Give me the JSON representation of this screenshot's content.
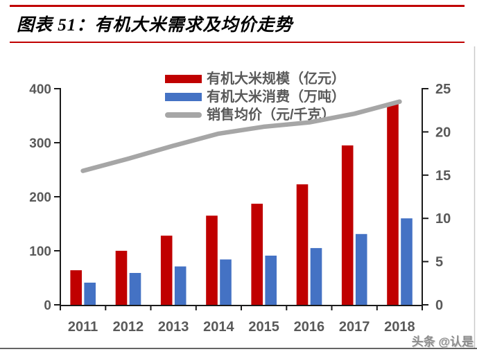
{
  "header": {
    "title": "图表 51：有机大米需求及均价走势"
  },
  "watermark": "头条 @认是",
  "colors": {
    "accent_rule": "#c00000",
    "bar_scale": "#c00000",
    "bar_consumption": "#4472c4",
    "price_line": "#a6a6a6",
    "axis": "#1a1a1a",
    "tick_label": "#595959",
    "page_border_right": "#c9c9c9",
    "page_border_bottom": "#303030"
  },
  "chart_data": {
    "type": "bar",
    "subtype": "grouped-bars-with-line",
    "title": "有机大米需求及均价走势",
    "categories": [
      "2011",
      "2012",
      "2013",
      "2014",
      "2015",
      "2016",
      "2017",
      "2018"
    ],
    "series": [
      {
        "name": "有机大米规模（亿元）",
        "type": "bar",
        "axis": "left",
        "color": "#c00000",
        "values": [
          64,
          100,
          128,
          165,
          187,
          223,
          295,
          373
        ]
      },
      {
        "name": "有机大米消费（万吨）",
        "type": "bar",
        "axis": "left",
        "color": "#4472c4",
        "values": [
          41,
          59,
          71,
          84,
          91,
          105,
          131,
          160
        ]
      },
      {
        "name": "销售均价（元/千克）",
        "type": "line",
        "axis": "right",
        "color": "#a6a6a6",
        "values": [
          15.5,
          16.9,
          18.4,
          19.8,
          20.6,
          21.1,
          22.1,
          23.5
        ]
      }
    ],
    "left_axis": {
      "min": 0,
      "max": 400,
      "ticks": [
        0,
        100,
        200,
        300,
        400
      ]
    },
    "right_axis": {
      "min": 0,
      "max": 25,
      "ticks": [
        0,
        5,
        10,
        15,
        20,
        25
      ]
    },
    "legend_position": "top-center",
    "grid": false
  }
}
